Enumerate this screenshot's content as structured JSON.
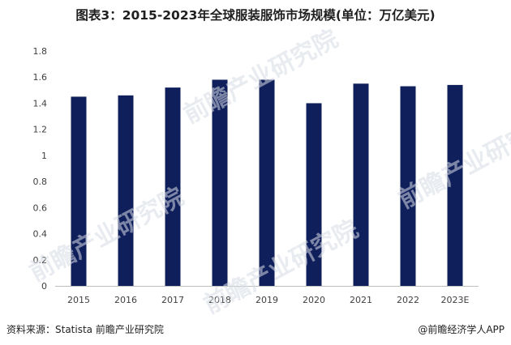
{
  "chart_data": {
    "type": "bar",
    "title": "图表3：2015-2023年全球服装服饰市场规模(单位：万亿美元)",
    "categories": [
      "2015",
      "2016",
      "2017",
      "2018",
      "2019",
      "2020",
      "2021",
      "2022",
      "2023E"
    ],
    "values": [
      1.45,
      1.46,
      1.52,
      1.58,
      1.58,
      1.4,
      1.55,
      1.53,
      1.54
    ],
    "ylim": [
      0,
      1.8
    ],
    "yticks": [
      "0",
      "0.2",
      "0.4",
      "0.6",
      "0.8",
      "1",
      "1.2",
      "1.4",
      "1.6",
      "1.8"
    ],
    "xlabel": "",
    "ylabel": "",
    "grid": false,
    "bar_color": "#0f1f5c"
  },
  "footer": {
    "source": "资料来源：Statista 前瞻产业研究院",
    "brand_symbol": "@",
    "brand": "前瞻经济学人APP"
  },
  "watermark": {
    "text": "前瞻产业研究院"
  }
}
